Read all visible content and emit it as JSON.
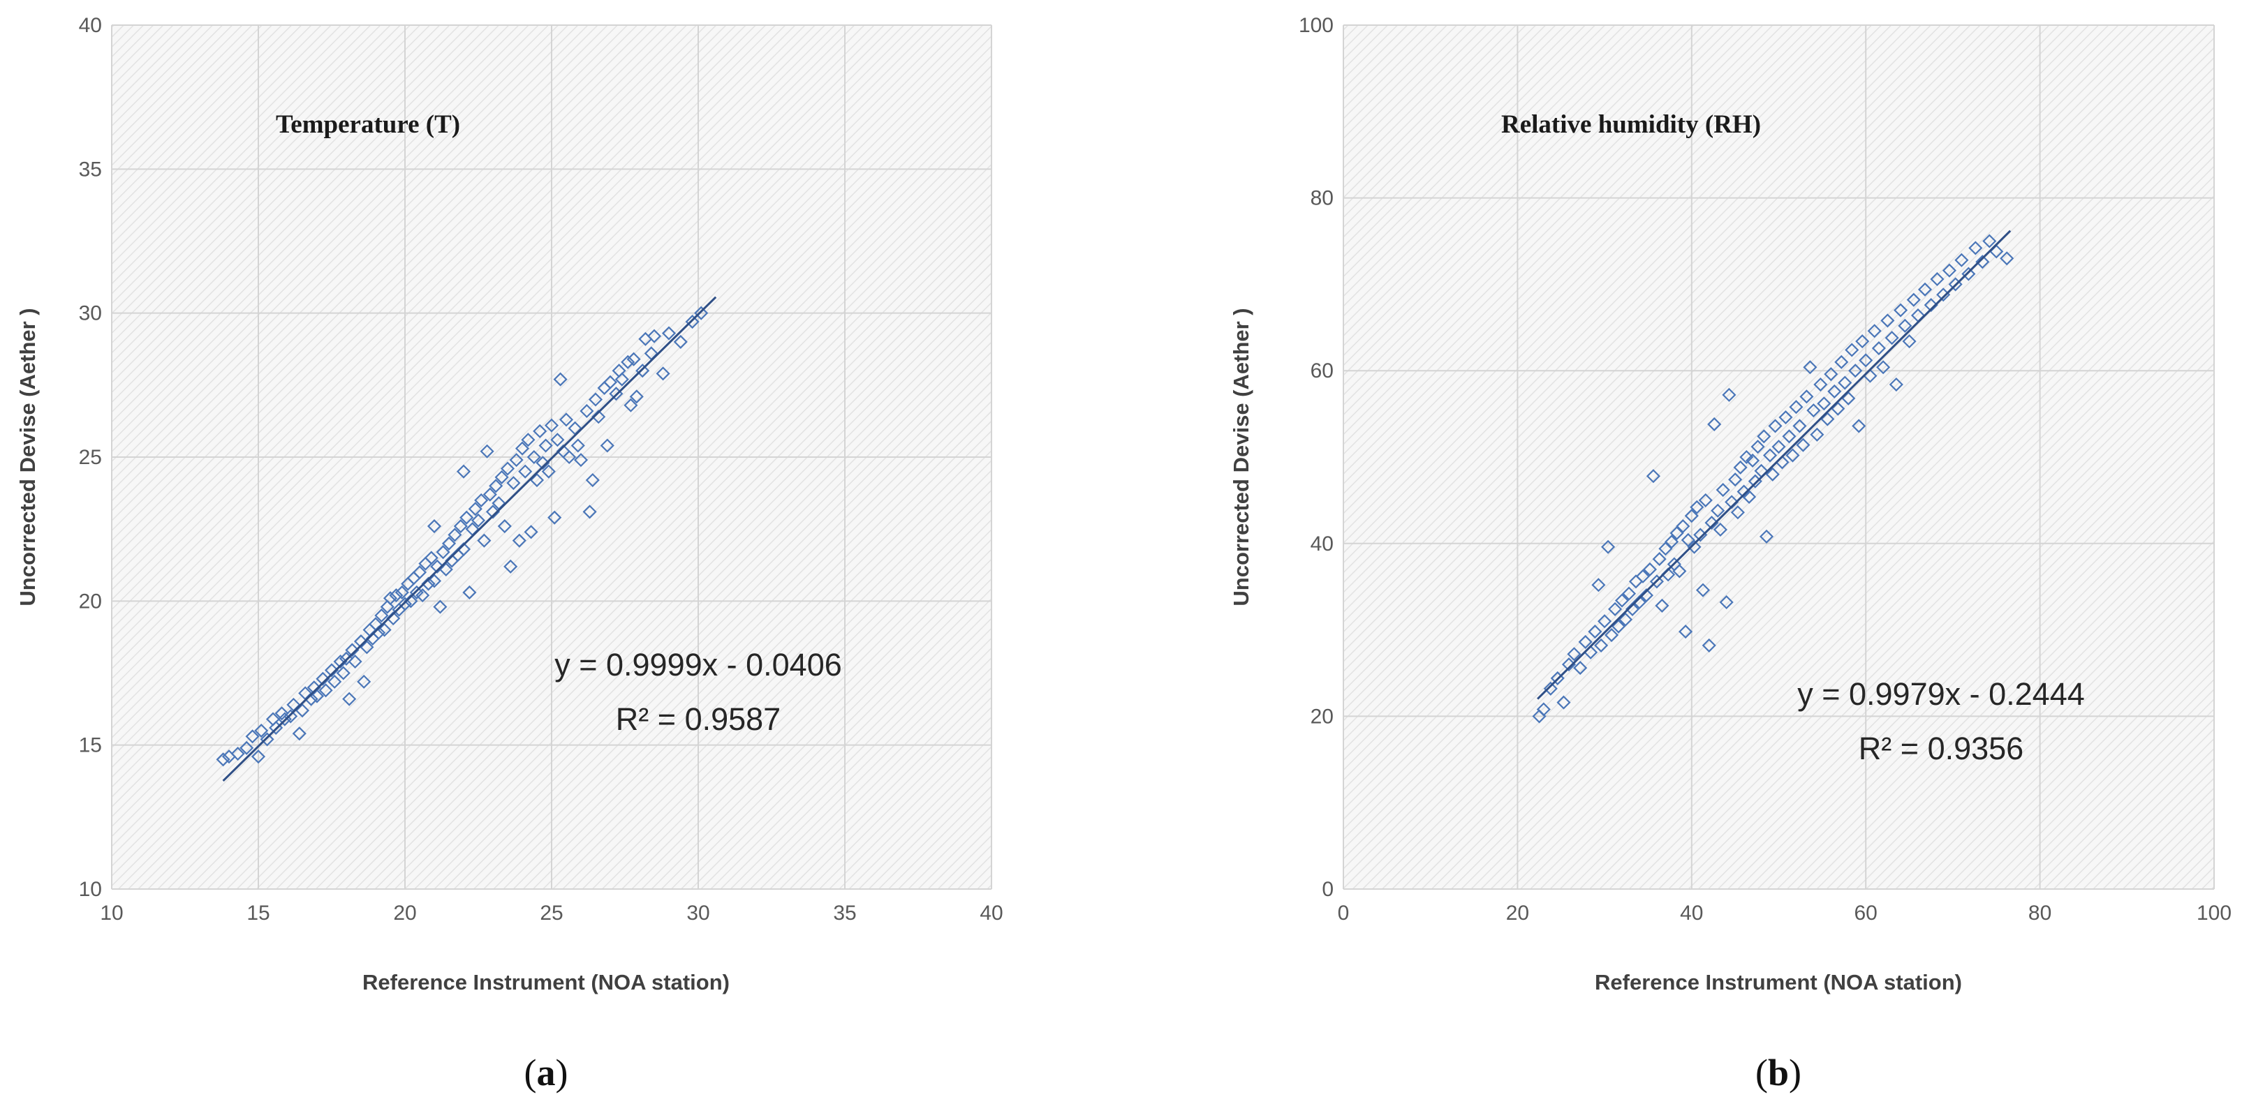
{
  "colors": {
    "marker": "#4a76b8",
    "trendline": "#2f4f86",
    "gridline": "#d4d4d4",
    "hatch": "#e2e2e2"
  },
  "chart_data": [
    {
      "type": "scatter",
      "panel_label": "a",
      "title": "Temperature (T)",
      "xlabel": "Reference Instrument (NOA station)",
      "ylabel": "Uncorrected Devise (Aether )",
      "xlim": [
        10,
        40
      ],
      "ylim": [
        10,
        40
      ],
      "xticks": [
        "10",
        "15",
        "20",
        "25",
        "30",
        "35",
        "40"
      ],
      "yticks": [
        "10",
        "15",
        "20",
        "25",
        "30",
        "35",
        "40"
      ],
      "grid": true,
      "marker": "diamond-open",
      "trendline": {
        "slope": 0.9999,
        "intercept": -0.0406,
        "x_range": [
          13.8,
          30.6
        ]
      },
      "equation": "y = 0.9999x - 0.0406",
      "r_squared": "R² = 0.9587",
      "points": [
        [
          13.8,
          14.5
        ],
        [
          14.0,
          14.6
        ],
        [
          14.3,
          14.7
        ],
        [
          14.6,
          14.9
        ],
        [
          14.8,
          15.3
        ],
        [
          15.0,
          14.6
        ],
        [
          15.1,
          15.5
        ],
        [
          15.3,
          15.2
        ],
        [
          15.5,
          15.9
        ],
        [
          15.6,
          15.6
        ],
        [
          15.8,
          16.1
        ],
        [
          15.9,
          15.9
        ],
        [
          16.1,
          16.0
        ],
        [
          16.2,
          16.4
        ],
        [
          16.4,
          15.4
        ],
        [
          16.5,
          16.2
        ],
        [
          16.6,
          16.8
        ],
        [
          16.8,
          16.6
        ],
        [
          16.9,
          17.0
        ],
        [
          17.0,
          16.7
        ],
        [
          17.2,
          17.3
        ],
        [
          17.3,
          16.9
        ],
        [
          17.5,
          17.6
        ],
        [
          17.6,
          17.2
        ],
        [
          17.8,
          17.9
        ],
        [
          17.9,
          17.5
        ],
        [
          18.0,
          18.0
        ],
        [
          18.1,
          16.6
        ],
        [
          18.2,
          18.3
        ],
        [
          18.3,
          17.9
        ],
        [
          18.5,
          18.6
        ],
        [
          18.6,
          17.2
        ],
        [
          18.7,
          18.4
        ],
        [
          18.8,
          19.0
        ],
        [
          18.9,
          18.7
        ],
        [
          19.0,
          19.2
        ],
        [
          19.1,
          18.9
        ],
        [
          19.2,
          19.5
        ],
        [
          19.3,
          19.0
        ],
        [
          19.4,
          19.8
        ],
        [
          19.5,
          20.1
        ],
        [
          19.6,
          19.4
        ],
        [
          19.7,
          20.2
        ],
        [
          19.8,
          19.7
        ],
        [
          19.9,
          20.3
        ],
        [
          20.0,
          19.9
        ],
        [
          20.1,
          20.6
        ],
        [
          20.2,
          20.0
        ],
        [
          20.3,
          20.8
        ],
        [
          20.4,
          20.3
        ],
        [
          20.5,
          21.0
        ],
        [
          20.6,
          20.2
        ],
        [
          20.7,
          21.3
        ],
        [
          20.8,
          20.6
        ],
        [
          20.9,
          21.5
        ],
        [
          21.0,
          20.7
        ],
        [
          21.0,
          22.6
        ],
        [
          21.1,
          21.2
        ],
        [
          21.2,
          19.8
        ],
        [
          21.3,
          21.7
        ],
        [
          21.4,
          21.1
        ],
        [
          21.5,
          22.0
        ],
        [
          21.6,
          21.4
        ],
        [
          21.7,
          22.3
        ],
        [
          21.8,
          21.6
        ],
        [
          21.9,
          22.6
        ],
        [
          22.0,
          21.8
        ],
        [
          22.0,
          24.5
        ],
        [
          22.1,
          22.9
        ],
        [
          22.2,
          20.3
        ],
        [
          22.3,
          22.5
        ],
        [
          22.4,
          23.2
        ],
        [
          22.5,
          22.8
        ],
        [
          22.6,
          23.5
        ],
        [
          22.7,
          22.1
        ],
        [
          22.8,
          25.2
        ],
        [
          22.9,
          23.7
        ],
        [
          23.0,
          23.1
        ],
        [
          23.1,
          24.0
        ],
        [
          23.2,
          23.4
        ],
        [
          23.3,
          24.3
        ],
        [
          23.4,
          22.6
        ],
        [
          23.5,
          24.6
        ],
        [
          23.6,
          21.2
        ],
        [
          23.7,
          24.1
        ],
        [
          23.8,
          24.9
        ],
        [
          23.9,
          22.1
        ],
        [
          24.0,
          25.3
        ],
        [
          24.1,
          24.5
        ],
        [
          24.2,
          25.6
        ],
        [
          24.3,
          22.4
        ],
        [
          24.4,
          25.0
        ],
        [
          24.5,
          24.2
        ],
        [
          24.6,
          25.9
        ],
        [
          24.7,
          24.8
        ],
        [
          24.8,
          25.4
        ],
        [
          24.9,
          24.5
        ],
        [
          25.0,
          26.1
        ],
        [
          25.1,
          22.9
        ],
        [
          25.2,
          25.6
        ],
        [
          25.3,
          27.7
        ],
        [
          25.4,
          25.2
        ],
        [
          25.5,
          26.3
        ],
        [
          25.6,
          25.0
        ],
        [
          25.8,
          26.0
        ],
        [
          25.9,
          25.4
        ],
        [
          26.0,
          24.9
        ],
        [
          26.2,
          26.6
        ],
        [
          26.3,
          23.1
        ],
        [
          26.4,
          24.2
        ],
        [
          26.5,
          27.0
        ],
        [
          26.6,
          26.4
        ],
        [
          26.8,
          27.4
        ],
        [
          26.9,
          25.4
        ],
        [
          27.0,
          27.6
        ],
        [
          27.2,
          27.2
        ],
        [
          27.3,
          28.0
        ],
        [
          27.4,
          27.7
        ],
        [
          27.6,
          28.3
        ],
        [
          27.7,
          26.8
        ],
        [
          27.8,
          28.4
        ],
        [
          27.9,
          27.1
        ],
        [
          28.1,
          28.0
        ],
        [
          28.2,
          29.1
        ],
        [
          28.4,
          28.6
        ],
        [
          28.5,
          29.2
        ],
        [
          28.8,
          27.9
        ],
        [
          29.0,
          29.3
        ],
        [
          29.4,
          29.0
        ],
        [
          29.8,
          29.7
        ],
        [
          30.1,
          30.0
        ]
      ]
    },
    {
      "type": "scatter",
      "panel_label": "b",
      "title": "Relative humidity (RH)",
      "xlabel": "Reference Instrument (NOA station)",
      "ylabel": "Uncorrected Devise (Aether )",
      "xlim": [
        0,
        100
      ],
      "ylim": [
        0,
        100
      ],
      "xticks": [
        "0",
        "20",
        "40",
        "60",
        "80",
        "100"
      ],
      "yticks": [
        "0",
        "20",
        "40",
        "60",
        "80",
        "100"
      ],
      "grid": true,
      "marker": "diamond-open",
      "trendline": {
        "slope": 0.9979,
        "intercept": -0.2444,
        "x_range": [
          22.3,
          76.6
        ]
      },
      "equation": "y = 0.9979x - 0.2444",
      "r_squared": "R² = 0.9356",
      "points": [
        [
          22.5,
          20.0
        ],
        [
          23.0,
          20.8
        ],
        [
          23.8,
          23.2
        ],
        [
          24.6,
          24.4
        ],
        [
          25.3,
          21.6
        ],
        [
          25.9,
          26.0
        ],
        [
          26.5,
          27.2
        ],
        [
          27.2,
          25.6
        ],
        [
          27.8,
          28.6
        ],
        [
          28.4,
          27.4
        ],
        [
          28.9,
          29.8
        ],
        [
          29.3,
          35.2
        ],
        [
          29.6,
          28.2
        ],
        [
          30.0,
          31.0
        ],
        [
          30.4,
          39.6
        ],
        [
          30.8,
          29.4
        ],
        [
          31.2,
          32.4
        ],
        [
          31.6,
          30.4
        ],
        [
          32.0,
          33.4
        ],
        [
          32.4,
          31.2
        ],
        [
          32.8,
          34.2
        ],
        [
          33.2,
          32.4
        ],
        [
          33.6,
          35.6
        ],
        [
          34.0,
          33.2
        ],
        [
          34.4,
          36.2
        ],
        [
          34.8,
          34.0
        ],
        [
          35.2,
          37.0
        ],
        [
          35.6,
          47.8
        ],
        [
          36.0,
          35.6
        ],
        [
          36.3,
          38.2
        ],
        [
          36.6,
          32.8
        ],
        [
          37.0,
          39.4
        ],
        [
          37.3,
          36.4
        ],
        [
          37.7,
          40.2
        ],
        [
          38.0,
          37.6
        ],
        [
          38.3,
          41.2
        ],
        [
          38.6,
          36.8
        ],
        [
          39.0,
          42.0
        ],
        [
          39.3,
          29.8
        ],
        [
          39.6,
          40.4
        ],
        [
          40.0,
          43.2
        ],
        [
          40.3,
          39.6
        ],
        [
          40.6,
          44.2
        ],
        [
          41.0,
          41.0
        ],
        [
          41.3,
          34.6
        ],
        [
          41.6,
          45.0
        ],
        [
          42.0,
          28.2
        ],
        [
          42.3,
          42.4
        ],
        [
          42.6,
          53.8
        ],
        [
          43.0,
          43.8
        ],
        [
          43.3,
          41.6
        ],
        [
          43.6,
          46.2
        ],
        [
          44.0,
          33.2
        ],
        [
          44.3,
          57.2
        ],
        [
          44.6,
          44.8
        ],
        [
          45.0,
          47.4
        ],
        [
          45.3,
          43.6
        ],
        [
          45.6,
          48.8
        ],
        [
          46.0,
          46.0
        ],
        [
          46.3,
          50.0
        ],
        [
          46.6,
          45.4
        ],
        [
          47.0,
          49.6
        ],
        [
          47.3,
          47.2
        ],
        [
          47.6,
          51.2
        ],
        [
          48.0,
          48.4
        ],
        [
          48.3,
          52.4
        ],
        [
          48.6,
          40.8
        ],
        [
          49.0,
          50.2
        ],
        [
          49.3,
          48.0
        ],
        [
          49.6,
          53.6
        ],
        [
          50.0,
          51.2
        ],
        [
          50.4,
          49.4
        ],
        [
          50.8,
          54.6
        ],
        [
          51.2,
          52.4
        ],
        [
          51.6,
          50.2
        ],
        [
          52.0,
          55.8
        ],
        [
          52.4,
          53.6
        ],
        [
          52.8,
          51.4
        ],
        [
          53.2,
          57.0
        ],
        [
          53.6,
          60.4
        ],
        [
          54.0,
          55.4
        ],
        [
          54.4,
          52.6
        ],
        [
          54.8,
          58.4
        ],
        [
          55.2,
          56.2
        ],
        [
          55.6,
          54.4
        ],
        [
          56.0,
          59.6
        ],
        [
          56.4,
          57.6
        ],
        [
          56.8,
          55.6
        ],
        [
          57.2,
          61.0
        ],
        [
          57.6,
          58.6
        ],
        [
          58.0,
          56.8
        ],
        [
          58.4,
          62.4
        ],
        [
          58.8,
          60.0
        ],
        [
          59.2,
          53.6
        ],
        [
          59.6,
          63.4
        ],
        [
          60.0,
          61.2
        ],
        [
          60.5,
          59.4
        ],
        [
          61.0,
          64.6
        ],
        [
          61.5,
          62.6
        ],
        [
          62.0,
          60.4
        ],
        [
          62.5,
          65.8
        ],
        [
          63.0,
          63.8
        ],
        [
          63.5,
          58.4
        ],
        [
          64.0,
          67.0
        ],
        [
          64.5,
          65.2
        ],
        [
          65.0,
          63.4
        ],
        [
          65.5,
          68.2
        ],
        [
          66.0,
          66.4
        ],
        [
          66.8,
          69.4
        ],
        [
          67.5,
          67.6
        ],
        [
          68.2,
          70.6
        ],
        [
          68.9,
          68.8
        ],
        [
          69.6,
          71.6
        ],
        [
          70.3,
          70.0
        ],
        [
          71.0,
          72.8
        ],
        [
          71.8,
          71.2
        ],
        [
          72.6,
          74.2
        ],
        [
          73.4,
          72.6
        ],
        [
          74.2,
          75.0
        ],
        [
          75.0,
          73.8
        ],
        [
          76.2,
          73.0
        ]
      ]
    }
  ]
}
